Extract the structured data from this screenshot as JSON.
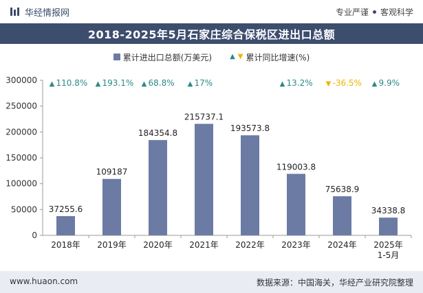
{
  "header": {
    "brand_name": "华经情报网",
    "tagline_left": "专业严谨",
    "tagline_right": "客观科学"
  },
  "title": "2018-2025年5月石家庄综合保税区进出口总额",
  "legend": {
    "bar_label": "累计进出口总额(万美元)",
    "growth_label": "累计同比增速(%)"
  },
  "footer": {
    "url": "www.huaon.com",
    "source": "数据来源：中国海关，华经产业研究院整理"
  },
  "colors": {
    "bar": "#6b7ba4",
    "title_bg": "#3d4d6e",
    "growth_up": "#2a8a86",
    "growth_down": "#f0b400"
  },
  "chart_data": {
    "type": "bar",
    "categories": [
      "2018年",
      "2019年",
      "2020年",
      "2021年",
      "2022年",
      "2023年",
      "2024年",
      "2025年\n1-5月"
    ],
    "series": [
      {
        "name": "累计进出口总额(万美元)",
        "values": [
          37255.6,
          109187,
          184354.8,
          215737.1,
          193573.8,
          119003.8,
          75638.9,
          34338.8
        ],
        "value_labels": [
          "37255.6",
          "109187",
          "184354.8",
          "215737.1",
          "193573.8",
          "119003.8",
          "75638.9",
          "34338.8"
        ]
      },
      {
        "name": "累计同比增速(%)",
        "values": [
          110.8,
          193.1,
          68.8,
          17,
          null,
          13.2,
          -36.5,
          9.9
        ],
        "value_labels": [
          "110.8%",
          "193.1%",
          "68.8%",
          "17%",
          "",
          "13.2%",
          "-36.5%",
          "9.9%"
        ]
      }
    ],
    "ylim": [
      0,
      300000
    ],
    "yticks": [
      "0",
      "50000",
      "100000",
      "150000",
      "200000",
      "250000",
      "300000"
    ],
    "grid": false,
    "legend_position": "top"
  }
}
